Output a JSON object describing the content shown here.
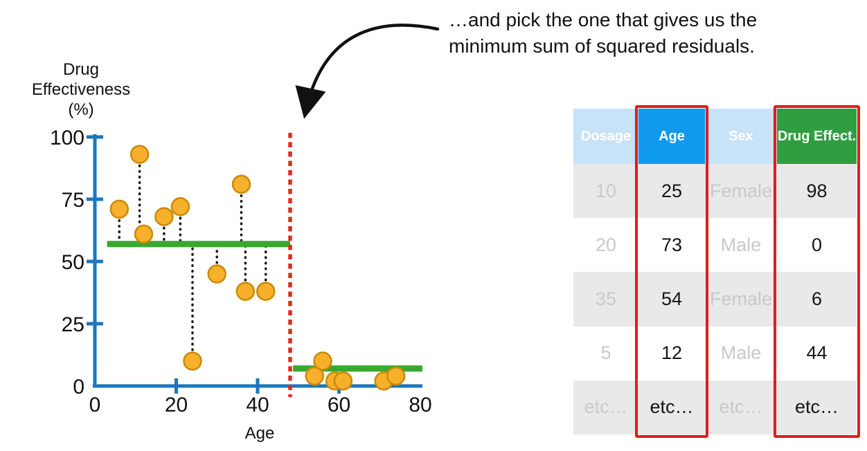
{
  "annotation": {
    "line1": "…and pick the one that gives us the",
    "line2": "minimum sum of squared residuals."
  },
  "chart_data": {
    "type": "scatter",
    "title": "",
    "xlabel": "Age",
    "ylabel": "Drug Effectiveness (%)",
    "ylabel_lines": [
      "Drug",
      "Effectiveness",
      "(%)"
    ],
    "xlim": [
      0,
      80
    ],
    "ylim": [
      0,
      100
    ],
    "xticks": [
      0,
      20,
      40,
      60,
      80
    ],
    "yticks": [
      0,
      25,
      50,
      75,
      100
    ],
    "points": [
      [
        6,
        71
      ],
      [
        11,
        93
      ],
      [
        12,
        61
      ],
      [
        17,
        68
      ],
      [
        21,
        72
      ],
      [
        24,
        10
      ],
      [
        30,
        45
      ],
      [
        36,
        81
      ],
      [
        37,
        38
      ],
      [
        42,
        38
      ],
      [
        54,
        4
      ],
      [
        56,
        10
      ],
      [
        59,
        2
      ],
      [
        61,
        2
      ],
      [
        71,
        2
      ],
      [
        74,
        4
      ]
    ],
    "split_age": 48,
    "segments": [
      {
        "x_start": 3,
        "x_end": 48,
        "mean": 57
      },
      {
        "x_start": 48.7,
        "x_end": 80.5,
        "mean": 7
      }
    ],
    "grid": false,
    "legend": "none"
  },
  "table": {
    "columns": [
      {
        "key": "dosage",
        "label": "Dosage",
        "faded": true,
        "highlighted": false,
        "header_bg": "#c8e2f8",
        "header_color": "#ffffff"
      },
      {
        "key": "age",
        "label": "Age",
        "faded": false,
        "highlighted": true,
        "header_bg": "#0f9af0",
        "header_color": "#ffffff"
      },
      {
        "key": "sex",
        "label": "Sex",
        "faded": true,
        "highlighted": false,
        "header_bg": "#c8e2f8",
        "header_color": "#ffffff"
      },
      {
        "key": "effect",
        "label": "Drug Effect.",
        "faded": false,
        "highlighted": true,
        "header_bg": "#2f9e41",
        "header_color": "#ffffff"
      }
    ],
    "rows": [
      [
        "10",
        "25",
        "Female",
        "98"
      ],
      [
        "20",
        "73",
        "Male",
        "0"
      ],
      [
        "35",
        "54",
        "Female",
        "6"
      ],
      [
        "5",
        "12",
        "Male",
        "44"
      ],
      [
        "etc…",
        "etc…",
        "etc…",
        "etc…"
      ]
    ]
  },
  "colors": {
    "axis": "#1d76bb",
    "point_fill": "#f7b02c",
    "point_stroke": "#c98a06",
    "mean_line": "#39a82e",
    "split_line": "#e02a20",
    "residual": "#111111",
    "arrow": "#111111",
    "highlight_border": "#e21c1c",
    "row_shaded": "#e9e9e9",
    "row_plain": "#ffffff",
    "faded_text": "#c9c9c9",
    "text": "#111111"
  }
}
